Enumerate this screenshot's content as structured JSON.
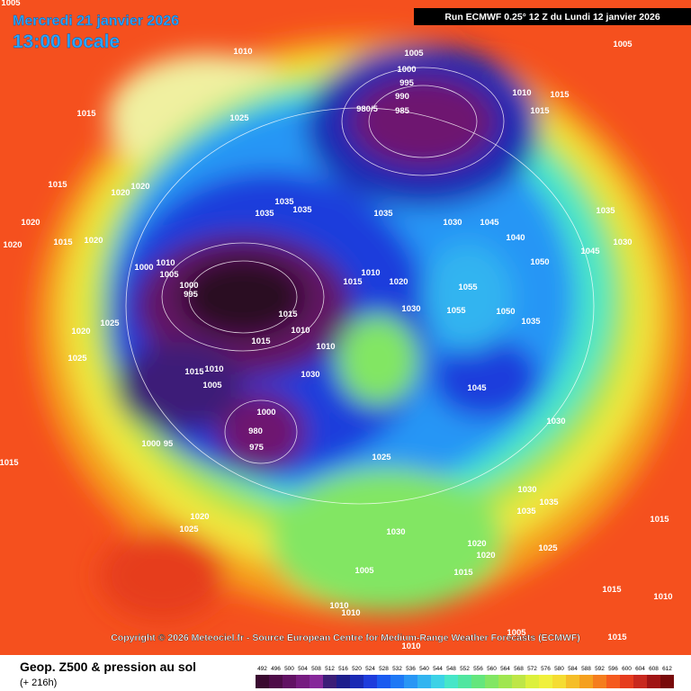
{
  "header": {
    "date": "Mercredi 21 janvier 2026",
    "time": "13:00 locale",
    "run": "Run ECMWF 0.25° 12 Z du Lundi 12 janvier 2026"
  },
  "footer": {
    "copyright": "Copyright © 2026 Meteociel.fr - Source European Centre for Medium-Range Weather Forecasts (ECMWF)",
    "caption": "Geop. Z500 & pression au sol",
    "lead": "(+ 216h)"
  },
  "colorbar": {
    "ticks": [
      492,
      496,
      500,
      504,
      508,
      512,
      516,
      520,
      524,
      528,
      532,
      536,
      540,
      544,
      548,
      552,
      556,
      560,
      564,
      568,
      572,
      576,
      580,
      584,
      588,
      592,
      596,
      600,
      604,
      608,
      612
    ],
    "colors": [
      "#3a0a30",
      "#4e0c48",
      "#621264",
      "#761c80",
      "#86289a",
      "#3c1e78",
      "#1e1e8c",
      "#1a2ab4",
      "#1e3cdc",
      "#1a5af0",
      "#1e78f5",
      "#2896f5",
      "#32b4f0",
      "#3cd2e6",
      "#46e6c8",
      "#50e6a0",
      "#64e67d",
      "#82e664",
      "#a0e650",
      "#bee646",
      "#dcf03c",
      "#f0f03c",
      "#f5dc32",
      "#f5be28",
      "#f5a01e",
      "#f57d1e",
      "#f55a1e",
      "#e63c1e",
      "#c8281e",
      "#a01414",
      "#780a0a"
    ]
  },
  "pressure_labels": [
    "1005",
    "1010",
    "1005",
    "1005",
    "1000",
    "995",
    "990",
    "985",
    "980/5",
    "1010",
    "1015",
    "1015",
    "1015",
    "1025",
    "1015",
    "1020",
    "1020",
    "1020",
    "1020",
    "1015",
    "1020",
    "1035",
    "1035",
    "1035",
    "1035",
    "1030",
    "1045",
    "1040",
    "1035",
    "1030",
    "1045",
    "1050",
    "1010",
    "1005",
    "1000",
    "995",
    "1000",
    "1025",
    "1020",
    "1025",
    "1015",
    "1010",
    "1005",
    "1015",
    "1010",
    "1015",
    "1010",
    "1030",
    "1045",
    "1030",
    "1000",
    "980",
    "975",
    "1000",
    "95",
    "1025",
    "1030",
    "1035",
    "1035",
    "1015",
    "1020",
    "1025",
    "1030",
    "1020",
    "1025",
    "1020",
    "1015",
    "1005",
    "1015",
    "1015",
    "1010",
    "1010",
    "1010",
    "1005",
    "1015",
    "1010",
    "1010",
    "1015",
    "1020",
    "1055",
    "1055",
    "1050",
    "1035",
    "1030"
  ]
}
